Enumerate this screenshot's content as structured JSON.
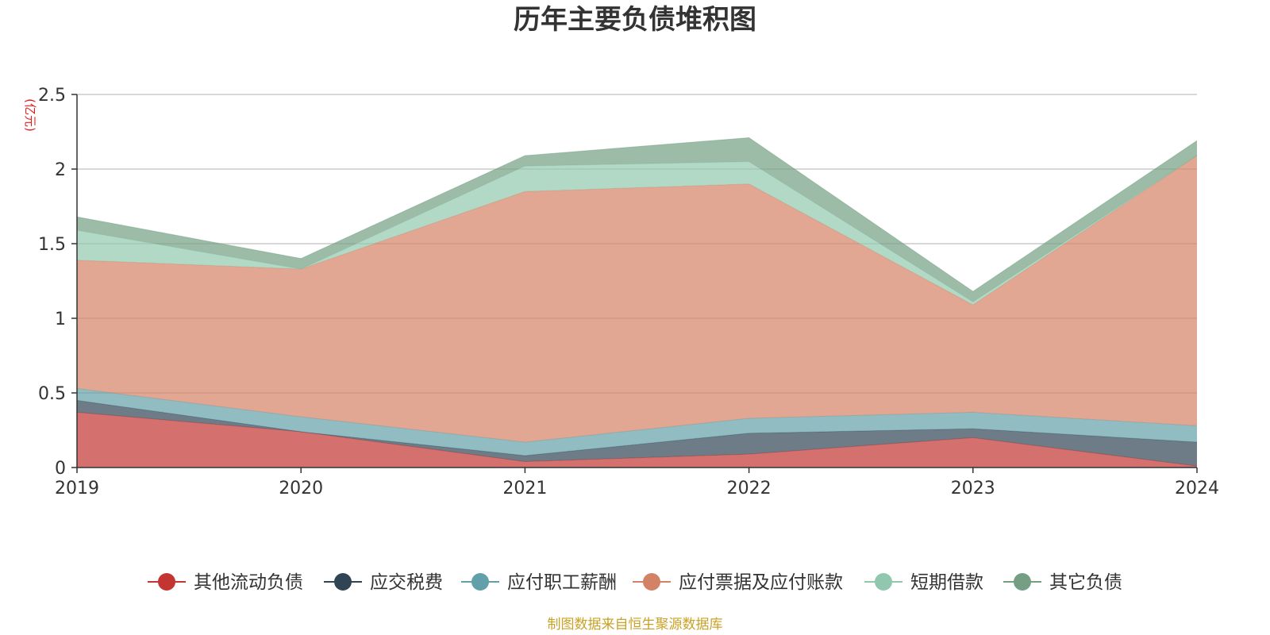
{
  "chart_data": {
    "type": "area",
    "stacked": true,
    "title": "历年主要负债堆积图",
    "y_unit": "(亿元)",
    "source": "制图数据来自恒生聚源数据库",
    "categories": [
      "2019",
      "2020",
      "2021",
      "2022",
      "2023",
      "2024"
    ],
    "ylim": [
      0,
      2.5
    ],
    "yticks": [
      "0",
      "0.5",
      "1",
      "1.5",
      "2",
      "2.5"
    ],
    "grid": true,
    "legend_position": "bottom",
    "series": [
      {
        "name": "其他流动负债",
        "color": "#c23531",
        "values": [
          0.37,
          0.24,
          0.04,
          0.09,
          0.2,
          0.01
        ]
      },
      {
        "name": "应交税费",
        "color": "#2f4554",
        "values": [
          0.08,
          0.0,
          0.04,
          0.14,
          0.06,
          0.16
        ]
      },
      {
        "name": "应付职工薪酬",
        "color": "#61a0a8",
        "values": [
          0.08,
          0.1,
          0.09,
          0.1,
          0.11,
          0.11
        ]
      },
      {
        "name": "应付票据及应付账款",
        "color": "#d48265",
        "values": [
          0.86,
          0.99,
          1.68,
          1.57,
          0.72,
          1.81
        ]
      },
      {
        "name": "短期借款",
        "color": "#91c7ae",
        "values": [
          0.2,
          0.0,
          0.17,
          0.15,
          0.02,
          0.0
        ]
      },
      {
        "name": "其它负债",
        "color": "#749f83",
        "values": [
          0.09,
          0.07,
          0.07,
          0.16,
          0.07,
          0.1
        ]
      }
    ]
  }
}
